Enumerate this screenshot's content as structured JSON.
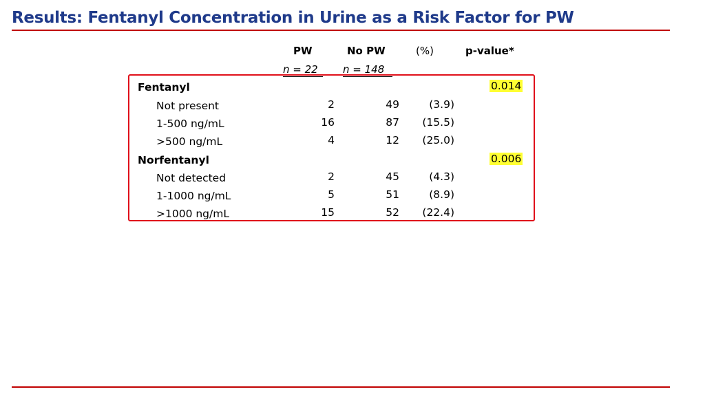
{
  "colors": {
    "title": "#1f3a8a",
    "accent": "#c00000",
    "highlight": "#ffff33"
  },
  "slide": {
    "title": "Results: Fentanyl Concentration in Urine as a Risk Factor for PW"
  },
  "table": {
    "headers": {
      "pw": "PW",
      "no_pw": "No PW",
      "pct": "(%)",
      "pvalue": "p-value*"
    },
    "subheaders": {
      "pw_n": "n = 22",
      "no_pw_n": "n = 148"
    },
    "groups": [
      {
        "label": "Fentanyl",
        "pvalue": "0.014",
        "rows": [
          {
            "label": "Not present",
            "pw": "2",
            "no_pw": "49",
            "pct": "(3.9)"
          },
          {
            "label": "1-500 ng/mL",
            "pw": "16",
            "no_pw": "87",
            "pct": "(15.5)"
          },
          {
            "label": ">500 ng/mL",
            "pw": "4",
            "no_pw": "12",
            "pct": "(25.0)"
          }
        ]
      },
      {
        "label": "Norfentanyl",
        "pvalue": "0.006",
        "rows": [
          {
            "label": "Not detected",
            "pw": "2",
            "no_pw": "45",
            "pct": "(4.3)"
          },
          {
            "label": "1-1000 ng/mL",
            "pw": "5",
            "no_pw": "51",
            "pct": "(8.9)"
          },
          {
            "label": ">1000 ng/mL",
            "pw": "15",
            "no_pw": "52",
            "pct": "(22.4)"
          }
        ]
      }
    ]
  }
}
